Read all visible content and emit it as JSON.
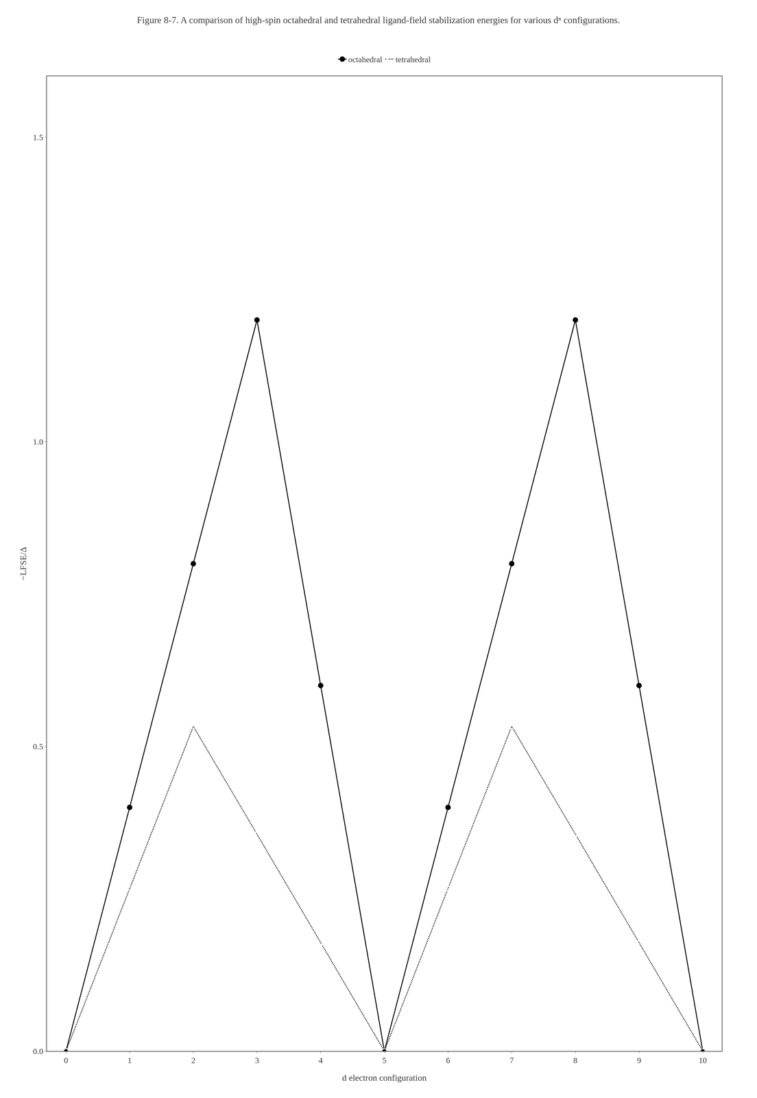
{
  "chart_data": {
    "type": "line",
    "title": "Figure 8-7. A comparison of high-spin octahedral and tetrahedral ligand-field stabilization energies for various dⁿ configurations.",
    "x_label": "d electron configuration",
    "y_label": "−LFSE/Δ",
    "x": [
      0,
      1,
      2,
      3,
      4,
      5,
      6,
      7,
      8,
      9,
      10
    ],
    "series": [
      {
        "name": "octahedral",
        "color": "#000000",
        "marker": "circle",
        "line_style": "solid",
        "values": [
          0.0,
          0.4,
          0.8,
          1.2,
          0.6,
          0.0,
          0.4,
          0.8,
          1.2,
          0.6,
          0.0
        ]
      },
      {
        "name": "tetrahedral",
        "color": "#000000",
        "marker": "circle-open",
        "line_style": "dotted",
        "values": [
          0.0,
          0.267,
          0.533,
          0.356,
          0.178,
          0.0,
          0.267,
          0.533,
          0.356,
          0.178,
          0.0
        ]
      }
    ],
    "xlim": [
      -0.3,
      10.3
    ],
    "ylim": [
      0.0,
      1.6
    ],
    "xticks": [
      0,
      1,
      2,
      3,
      4,
      5,
      6,
      7,
      8,
      9,
      10
    ],
    "yticks": [
      {
        "value": 0.0,
        "label": "0.0"
      },
      0.5,
      {
        "value": 1.0,
        "label": "1.0"
      },
      1.5
    ],
    "grid": false,
    "legend": "top"
  }
}
